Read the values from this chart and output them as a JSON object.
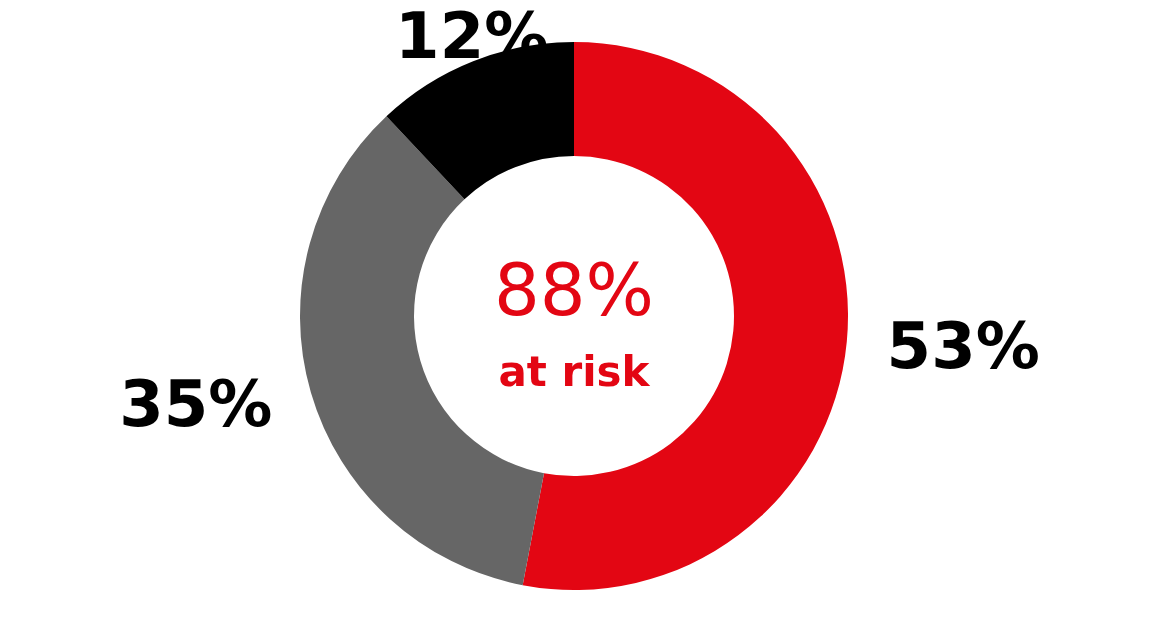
{
  "chart_data": {
    "type": "donut",
    "categories": [
      null,
      null,
      null
    ],
    "values": [
      53,
      35,
      12
    ],
    "colors": [
      "#e30613",
      "#666666",
      "#000000"
    ],
    "value_labels": [
      "53%",
      "35%",
      "12%"
    ],
    "annotations": [
      "88%",
      "at risk"
    ]
  }
}
